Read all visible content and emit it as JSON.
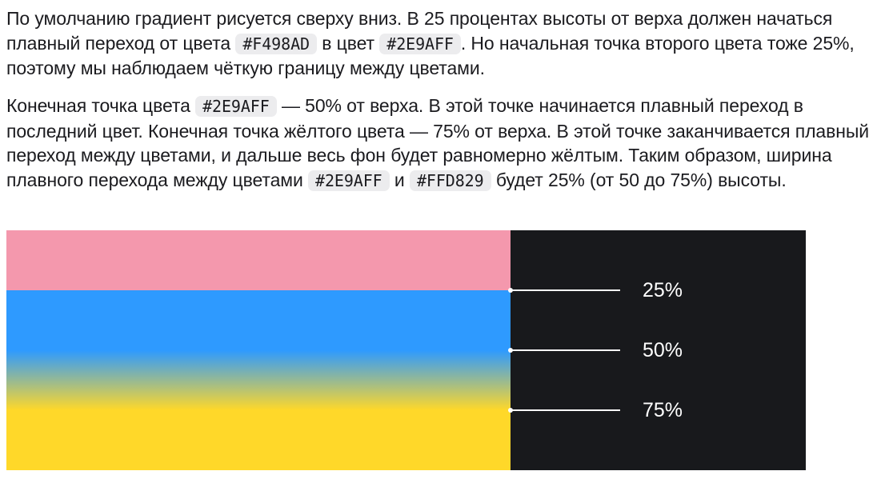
{
  "para1": {
    "t1": "По умолчанию градиент рисуется сверху вниз. В 25 процентах высоты от верха должен начаться плавный переход от цвета ",
    "c1": "#F498AD",
    "t2": " в цвет ",
    "c2": "#2E9AFF",
    "t3": ". Но начальная точка второго цвета тоже 25%, поэтому мы наблюдаем чёткую границу между цветами."
  },
  "para2": {
    "t1": "Конечная точка цвета ",
    "c1": "#2E9AFF",
    "t2": " — 50% от верха. В этой точке начинается плавный переход в последний цвет. Конечная точка жёлтого цвета — 75% от верха. В этой точке заканчивается плавный переход между цветами, и дальше весь фон будет равномерно жёлтым. Таким образом, ширина плавного перехода между цветами ",
    "c2": "#2E9AFF",
    "t3": " и ",
    "c3": "#FFD829",
    "t4": " будет 25% (от 50 до 75%) высоты."
  },
  "demo": {
    "colors": {
      "pink": "#F498AD",
      "blue": "#2E9AFF",
      "yellow": "#FFD829",
      "panel": "#18191C"
    },
    "stops": [
      {
        "label": "25%",
        "value": 25
      },
      {
        "label": "50%",
        "value": 50
      },
      {
        "label": "75%",
        "value": 75
      }
    ]
  }
}
